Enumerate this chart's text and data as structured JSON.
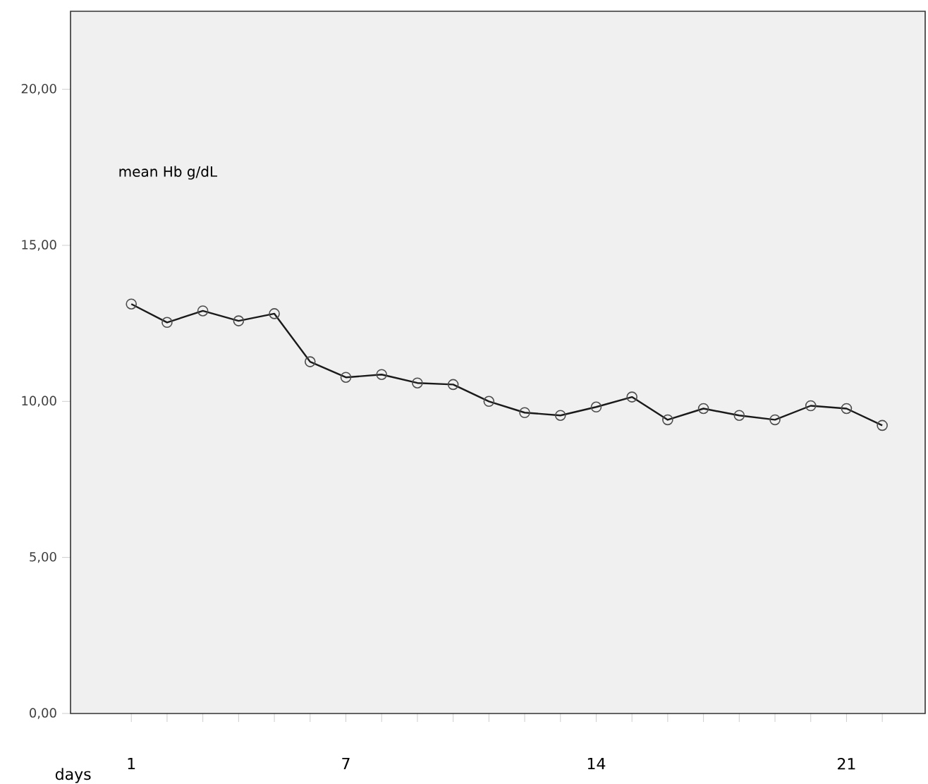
{
  "chart_data": {
    "type": "line",
    "xlabel": "days",
    "annotations": [
      "mean Hb  g/dL"
    ],
    "x": [
      1,
      2,
      3,
      4,
      5,
      6,
      7,
      8,
      9,
      10,
      11,
      12,
      13,
      14,
      15,
      16,
      17,
      18,
      19,
      20,
      21,
      22
    ],
    "values": [
      13.12,
      12.53,
      12.9,
      12.58,
      12.81,
      11.27,
      10.77,
      10.86,
      10.59,
      10.54,
      10.0,
      9.64,
      9.55,
      9.82,
      10.14,
      9.41,
      9.77,
      9.55,
      9.41,
      9.86,
      9.77,
      9.23
    ],
    "color": "#1a1a1a",
    "marker": "circle",
    "line_style": "solid",
    "grid": false,
    "xlim": [
      -0.7,
      23.2
    ],
    "xticks": [
      1,
      {
        "value": 2,
        "label": null
      },
      {
        "value": 3,
        "label": null
      },
      {
        "value": 4,
        "label": null
      },
      {
        "value": 5,
        "label": null
      },
      {
        "value": 6,
        "label": null
      },
      7,
      {
        "value": 8,
        "label": null
      },
      {
        "value": 9,
        "label": null
      },
      {
        "value": 10,
        "label": null
      },
      {
        "value": 11,
        "label": null
      },
      {
        "value": 12,
        "label": null
      },
      {
        "value": 13,
        "label": null
      },
      14,
      {
        "value": 15,
        "label": null
      },
      {
        "value": 16,
        "label": null
      },
      {
        "value": 17,
        "label": null
      },
      {
        "value": 18,
        "label": null
      },
      {
        "value": 19,
        "label": null
      },
      {
        "value": 20,
        "label": null
      },
      21,
      {
        "value": 22,
        "label": null
      }
    ],
    "ylim": [
      0,
      22.5
    ],
    "yticks": [
      {
        "value": 0,
        "label": "0,00"
      },
      {
        "value": 5,
        "label": "5,00"
      },
      {
        "value": 10,
        "label": "10,00"
      },
      {
        "value": 15,
        "label": "15,00"
      },
      {
        "value": 20,
        "label": "20,00"
      }
    ]
  }
}
